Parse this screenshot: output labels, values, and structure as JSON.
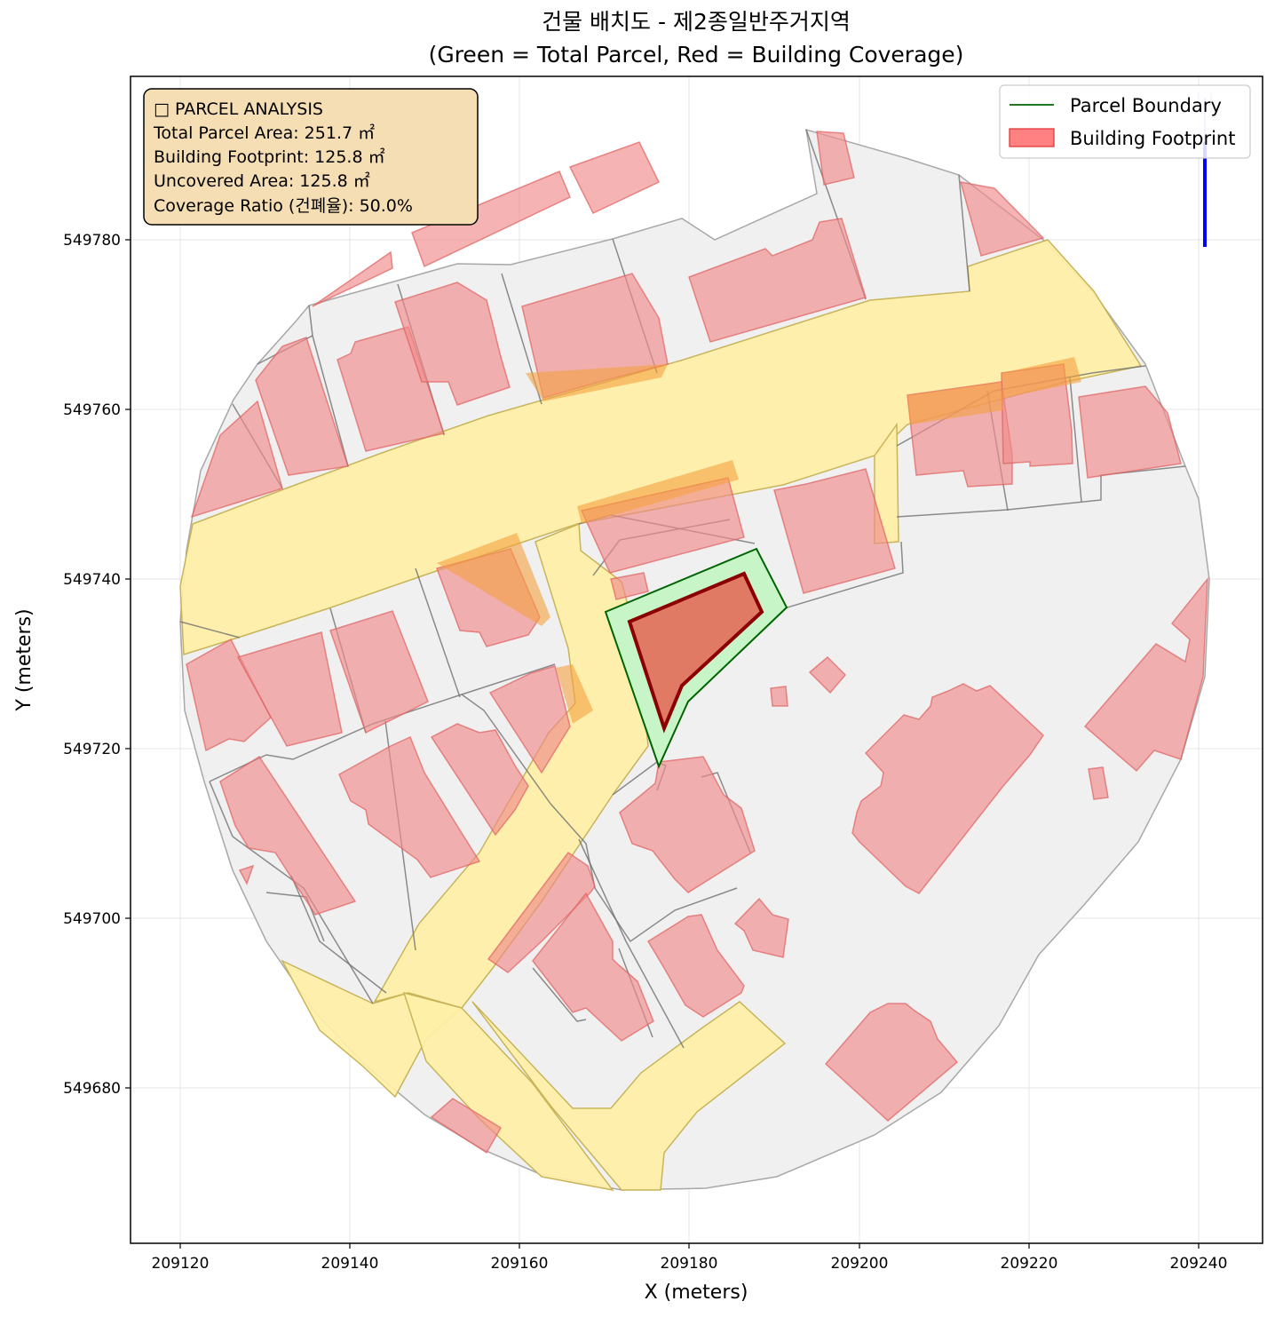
{
  "title": {
    "line1": "건물 배치도 - 제2종일반주거지역",
    "line2": "(Green = Total Parcel, Red = Building Coverage)"
  },
  "axes": {
    "xlabel": "X (meters)",
    "ylabel": "Y (meters)",
    "xlim": [
      209114.5,
      209247.5
    ],
    "ylim": [
      549662.0,
      549799.0
    ],
    "xticks": [
      "209120",
      "209140",
      "209160",
      "209180",
      "209200",
      "209220",
      "209240"
    ],
    "yticks": [
      "549680",
      "549700",
      "549720",
      "549740",
      "549760",
      "549780"
    ],
    "grid": true
  },
  "info_box": {
    "title": "□ PARCEL ANALYSIS",
    "total_parcel_area": "Total Parcel Area: 251.7 ㎡",
    "building_footprint": "Building Footprint: 125.8 ㎡",
    "uncovered_area": "Uncovered Area: 125.8 ㎡",
    "coverage_ratio": "Coverage Ratio (건폐율): 50.0%",
    "background_color": "#f5deb3"
  },
  "legend": {
    "placement": "top-right",
    "items": [
      {
        "label": "Parcel Boundary",
        "color": "#006400"
      },
      {
        "label": "Building Footprint",
        "color": "#ff0000"
      }
    ]
  },
  "colors": {
    "context_fill": "#f0f0f0",
    "context_edge": "#999999",
    "road_fill": "#fff0a6",
    "building_fill": "#f4a6a6",
    "building_edge": "#e07070",
    "parcel_fill": "#c8f5c8",
    "parcel_edge": "#006400",
    "target_fill": "#e07a64",
    "target_edge": "#8b0000",
    "north_arrow": "#0000ff"
  },
  "chart_data": {
    "type": "map",
    "parcel": {
      "polygon": [
        [
          209170.8,
          549736.2
        ],
        [
          209188.1,
          549743.6
        ],
        [
          209191.1,
          549736.6
        ],
        [
          209179.9,
          549725.5
        ],
        [
          209177.1,
          549718.0
        ]
      ],
      "area_m2": 251.7
    },
    "building": {
      "polygon": [
        [
          209173.4,
          549735.1
        ],
        [
          209186.4,
          549740.7
        ],
        [
          209188.5,
          549736.2
        ],
        [
          209179.2,
          549727.4
        ],
        [
          209177.6,
          549722.1
        ]
      ],
      "area_m2": 125.8
    },
    "coverage_ratio_percent": 50.0
  }
}
